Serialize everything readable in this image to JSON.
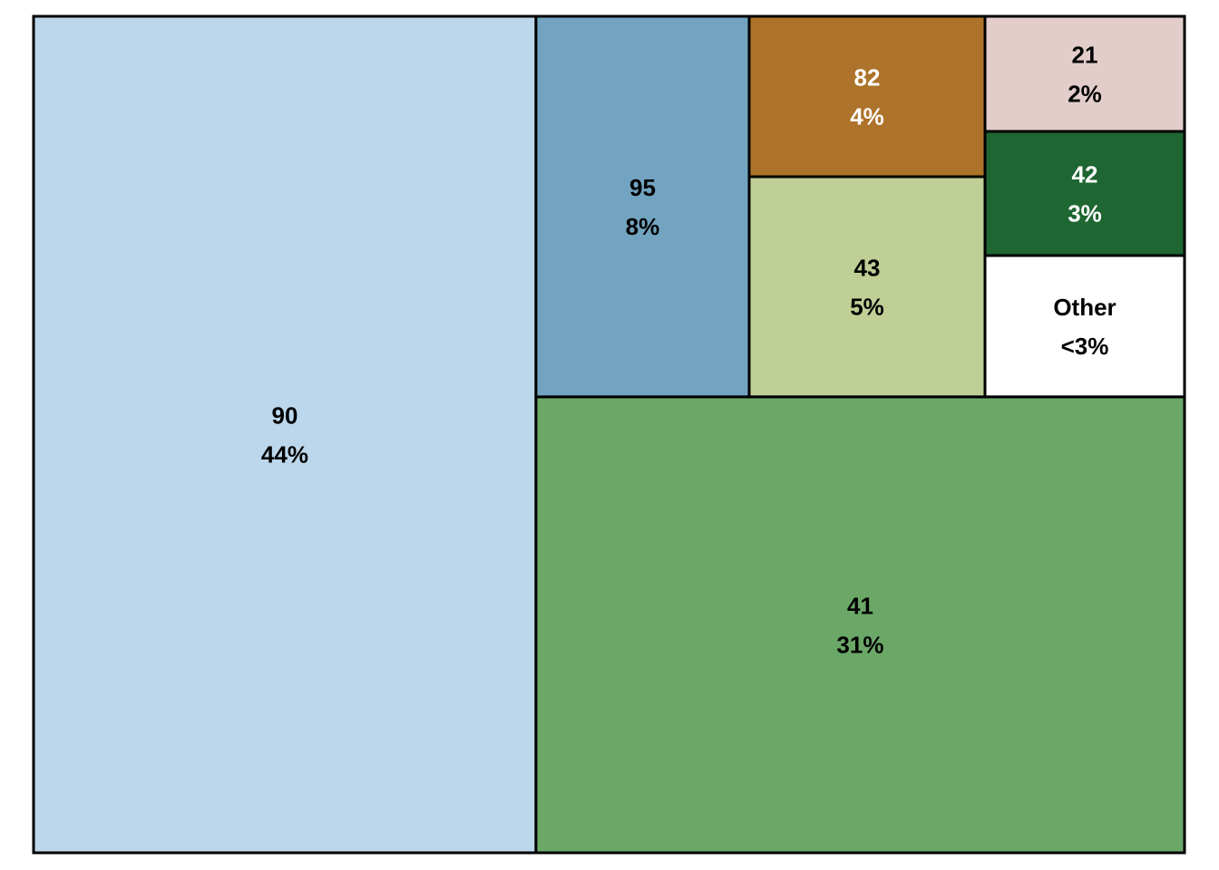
{
  "chart_data": {
    "type": "treemap",
    "title": "",
    "tiles": [
      {
        "label": "90",
        "share": "44%",
        "value": 44,
        "color": "#BCD7EC",
        "text_color": "#000000"
      },
      {
        "label": "41",
        "share": "31%",
        "value": 31,
        "color": "#6BA868",
        "text_color": "#000000"
      },
      {
        "label": "95",
        "share": "8%",
        "value": 8,
        "color": "#72A4C1",
        "text_color": "#000000"
      },
      {
        "label": "43",
        "share": "5%",
        "value": 5,
        "color": "#BFCF95",
        "text_color": "#000000"
      },
      {
        "label": "82",
        "share": "4%",
        "value": 4,
        "color": "#AE732A",
        "text_color": "#FFFFFF"
      },
      {
        "label": "42",
        "share": "3%",
        "value": 3,
        "color": "#1E6632",
        "text_color": "#FFFFFF"
      },
      {
        "label": "Other",
        "share": "<3%",
        "value": 3,
        "color": "#FFFFFF",
        "text_color": "#000000"
      },
      {
        "label": "21",
        "share": "2%",
        "value": 2,
        "color": "#E2CDCB",
        "text_color": "#000000"
      }
    ],
    "border_color": "#000000"
  }
}
